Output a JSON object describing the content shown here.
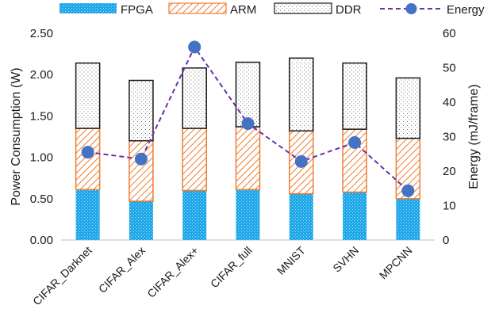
{
  "chart_data": {
    "type": "bar",
    "stacked": true,
    "categories": [
      "CIFAR_Darknet",
      "CIFAR_Alex",
      "CIFAR_Alex+",
      "CIFAR_full",
      "MNIST",
      "SVHN",
      "MPCNN"
    ],
    "series": [
      {
        "name": "FPGA",
        "values": [
          0.61,
          0.47,
          0.6,
          0.61,
          0.56,
          0.58,
          0.5
        ],
        "color": "#1ea7e8",
        "pattern": "dotted"
      },
      {
        "name": "ARM",
        "values": [
          0.74,
          0.73,
          0.75,
          0.76,
          0.76,
          0.76,
          0.73
        ],
        "color": "#ed7d31",
        "pattern": "diagonal-hatch"
      },
      {
        "name": "DDR",
        "values": [
          0.79,
          0.73,
          0.73,
          0.78,
          0.88,
          0.8,
          0.73
        ],
        "color": "#1a1a1a",
        "pattern": "stipple"
      }
    ],
    "line_series": {
      "name": "Energy",
      "values": [
        25.5,
        23.5,
        56.0,
        33.8,
        22.8,
        28.3,
        14.3
      ],
      "axis": "right",
      "color": "#7030a0",
      "marker_color": "#4472c4",
      "style": "dashed"
    },
    "ylabel": "Power Consumption (W)",
    "y2label": "Energy (mJ/frame)",
    "ylim": [
      0,
      2.5
    ],
    "y2lim": [
      0,
      60
    ],
    "yticks": [
      "0.00",
      "0.50",
      "1.00",
      "1.50",
      "2.00",
      "2.50"
    ],
    "y2ticks": [
      "0",
      "10",
      "20",
      "30",
      "40",
      "50",
      "60"
    ],
    "legend_position": "top",
    "grid": false
  }
}
